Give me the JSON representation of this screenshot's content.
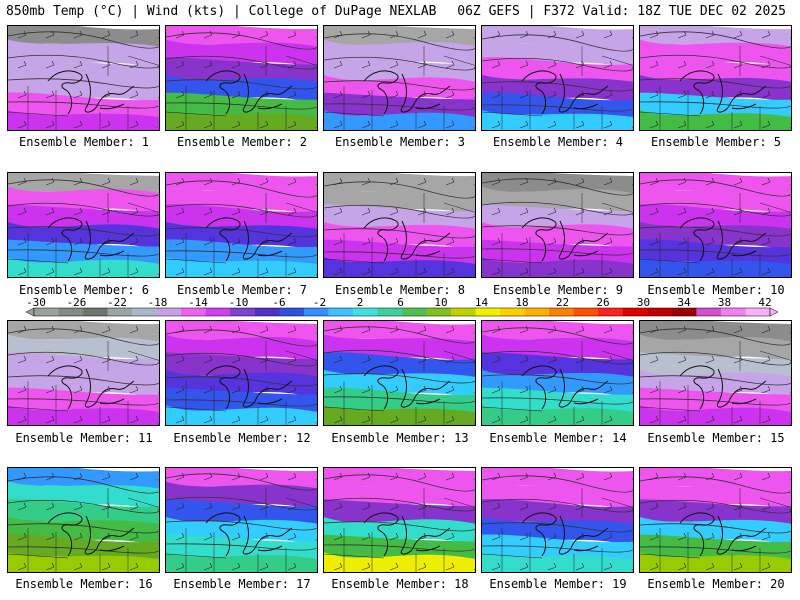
{
  "header": {
    "left": "850mb Temp (°C) | Wind (kts) | College of DuPage NEXLAB",
    "right": "06Z GEFS | F372 Valid: 18Z TUE DEC 02 2025"
  },
  "colors": {
    "palette": [
      "#8c8c8c",
      "#a6a6a6",
      "#b8c0d0",
      "#c6a4e8",
      "#ee55ee",
      "#cc33ee",
      "#8833cc",
      "#5533dd",
      "#3355ee",
      "#3399ff",
      "#33ccff",
      "#33ddcc",
      "#33cc88",
      "#44bb44",
      "#66aa22",
      "#99cc00",
      "#cccc00",
      "#eeee00",
      "#ffcc00"
    ]
  },
  "scale": {
    "labels": [
      "-30",
      "-26",
      "-22",
      "-18",
      "-14",
      "-10",
      "-6",
      "-2",
      "2",
      "6",
      "10",
      "14",
      "18",
      "22",
      "26",
      "30",
      "34",
      "38",
      "42"
    ],
    "colors": [
      "#9aa09a",
      "#838a83",
      "#6e776e",
      "#9aa6a6",
      "#a8b8c8",
      "#c8a0e6",
      "#f060f0",
      "#d040f0",
      "#8040d0",
      "#5030c8",
      "#3050e0",
      "#3090ff",
      "#40c0ff",
      "#40e0e0",
      "#40d0a0",
      "#50c050",
      "#80c020",
      "#c0d000",
      "#f0f000",
      "#ffd000",
      "#ffb000",
      "#ff8000",
      "#ff5000",
      "#ff2020",
      "#e00000",
      "#c00000",
      "#a00000",
      "#d050d0",
      "#f080f0",
      "#f8b0f8"
    ]
  },
  "members": [
    {
      "label": "Ensemble Member: 1",
      "bands": [
        0,
        3,
        3,
        3,
        4,
        5
      ]
    },
    {
      "label": "Ensemble Member: 2",
      "bands": [
        4,
        5,
        6,
        8,
        13,
        14
      ]
    },
    {
      "label": "Ensemble Member: 3",
      "bands": [
        1,
        3,
        3,
        4,
        6,
        9
      ]
    },
    {
      "label": "Ensemble Member: 4",
      "bands": [
        3,
        3,
        4,
        6,
        8,
        10
      ]
    },
    {
      "label": "Ensemble Member: 5",
      "bands": [
        3,
        4,
        4,
        6,
        10,
        13
      ]
    },
    {
      "label": "Ensemble Member: 6",
      "bands": [
        1,
        4,
        5,
        7,
        9,
        11
      ]
    },
    {
      "label": "Ensemble Member: 7",
      "bands": [
        4,
        4,
        5,
        7,
        9,
        10
      ]
    },
    {
      "label": "Ensemble Member: 8",
      "bands": [
        1,
        1,
        3,
        4,
        5,
        7
      ]
    },
    {
      "label": "Ensemble Member: 9",
      "bands": [
        0,
        1,
        3,
        4,
        5,
        6
      ]
    },
    {
      "label": "Ensemble Member: 10",
      "bands": [
        4,
        4,
        5,
        6,
        7,
        8
      ]
    },
    {
      "label": "Ensemble Member: 11",
      "bands": [
        1,
        2,
        3,
        3,
        4,
        5
      ]
    },
    {
      "label": "Ensemble Member: 12",
      "bands": [
        4,
        5,
        6,
        7,
        8,
        10
      ]
    },
    {
      "label": "Ensemble Member: 13",
      "bands": [
        4,
        5,
        8,
        10,
        12,
        14
      ]
    },
    {
      "label": "Ensemble Member: 14",
      "bands": [
        4,
        5,
        7,
        9,
        11,
        12
      ]
    },
    {
      "label": "Ensemble Member: 15",
      "bands": [
        0,
        1,
        2,
        3,
        4,
        5
      ]
    },
    {
      "label": "Ensemble Member: 16",
      "bands": [
        9,
        11,
        12,
        13,
        14,
        15
      ]
    },
    {
      "label": "Ensemble Member: 17",
      "bands": [
        4,
        6,
        8,
        10,
        11,
        12
      ]
    },
    {
      "label": "Ensemble Member: 18",
      "bands": [
        4,
        4,
        6,
        11,
        13,
        17
      ]
    },
    {
      "label": "Ensemble Member: 19",
      "bands": [
        4,
        4,
        6,
        8,
        10,
        11
      ]
    },
    {
      "label": "Ensemble Member: 20",
      "bands": [
        4,
        4,
        6,
        10,
        13,
        15
      ]
    }
  ]
}
